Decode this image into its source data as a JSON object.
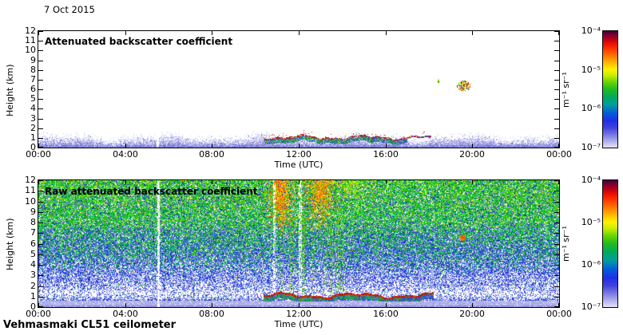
{
  "figure": {
    "date": "7 Oct 2015",
    "footer": "Vehmasmaki CL51 ceilometer",
    "background": "#ffffff"
  },
  "colorbar": {
    "unit": "m⁻¹ sr⁻¹",
    "scale": "log",
    "range": [
      "1e-7",
      "1e-4"
    ],
    "tick_labels": [
      "10⁻⁴",
      "10⁻⁵",
      "10⁻⁶",
      "10⁻⁷"
    ],
    "gradient_stops": [
      [
        "#3c0040",
        0
      ],
      [
        "#7a0030",
        3
      ],
      [
        "#b80018",
        7
      ],
      [
        "#ee1000",
        11
      ],
      [
        "#ff4600",
        17
      ],
      [
        "#ff8800",
        23
      ],
      [
        "#ffc000",
        28
      ],
      [
        "#fff200",
        33
      ],
      [
        "#c8ee00",
        38
      ],
      [
        "#66d400",
        44
      ],
      [
        "#1fbb1f",
        50
      ],
      [
        "#00a860",
        57
      ],
      [
        "#009e9e",
        63
      ],
      [
        "#0060d8",
        70
      ],
      [
        "#1f2fe8",
        77
      ],
      [
        "#4040dd",
        83
      ],
      [
        "#7878e2",
        89
      ],
      [
        "#a8a8ec",
        94
      ],
      [
        "#e4e4fa",
        100
      ]
    ]
  },
  "chart_data": [
    {
      "type": "heatmap",
      "title": "Attenuated backscatter coefficient",
      "xlabel": "Time (UTC)",
      "ylabel": "Height (km)",
      "x_ticks": [
        "00:00",
        "04:00",
        "08:00",
        "12:00",
        "16:00",
        "20:00",
        "00:00"
      ],
      "x_range_hours": [
        0,
        24
      ],
      "y_ticks": [
        "0",
        "1",
        "2",
        "3",
        "4",
        "5",
        "6",
        "7",
        "8",
        "9",
        "10",
        "11",
        "12"
      ],
      "y_range_km": [
        0,
        12
      ],
      "grid": false,
      "legend": "colorbar-right",
      "features": {
        "surface_aerosol_layer": {
          "time_h": [
            0,
            24
          ],
          "top_km": 1.1,
          "colors": [
            "lavender",
            "blue",
            "white"
          ]
        },
        "aerosol_layer_top_line": {
          "time_h": [
            10.4,
            18.1
          ],
          "height_km": 1.05,
          "colors": [
            "red",
            "green",
            "blue"
          ]
        },
        "cloud": {
          "time_h": 19.6,
          "height_km": 6.4,
          "colors": [
            "red",
            "yellow",
            "green",
            "blue"
          ]
        },
        "cloud_specks": [
          {
            "time_h": 18.43,
            "height_km": 6.9
          },
          {
            "time_h": 19.3,
            "height_km": 6.35
          }
        ],
        "data_gap_h": 5.5
      }
    },
    {
      "type": "heatmap",
      "title": "Raw attenuated backscatter coefficient",
      "xlabel": "Time (UTC)",
      "ylabel": "Height (km)",
      "x_ticks": [
        "00:00",
        "04:00",
        "08:00",
        "12:00",
        "16:00",
        "20:00",
        "00:00"
      ],
      "x_range_hours": [
        0,
        24
      ],
      "y_ticks": [
        "0",
        "1",
        "2",
        "3",
        "4",
        "5",
        "6",
        "7",
        "8",
        "9",
        "10",
        "11",
        "12"
      ],
      "y_range_km": [
        0,
        12
      ],
      "grid": false,
      "legend": "colorbar-right",
      "features": {
        "noise_field": "blue speckle low, green speckle high, white band 1-2.5 km, lavender band below 0.6 km",
        "plumes": [
          {
            "time_h": 11.15,
            "height_km": [
              6.5,
              12
            ],
            "colors": [
              "orange",
              "red",
              "yellow"
            ]
          },
          {
            "time_h": 12.95,
            "height_km": [
              7,
              12
            ],
            "colors": [
              "orange",
              "yellow"
            ]
          },
          {
            "time_h": 14.4,
            "height_km": [
              9,
              12
            ],
            "colors": [
              "yellow-green"
            ]
          }
        ],
        "boundary_layer_line": {
          "time_h": [
            10.35,
            18.2
          ],
          "height_km": 1.1,
          "colors": [
            "red",
            "green"
          ]
        },
        "cloud": {
          "time_h": 19.55,
          "height_km": 6.6,
          "colors": [
            "red",
            "orange"
          ]
        },
        "data_gap_h": 5.52
      }
    }
  ]
}
